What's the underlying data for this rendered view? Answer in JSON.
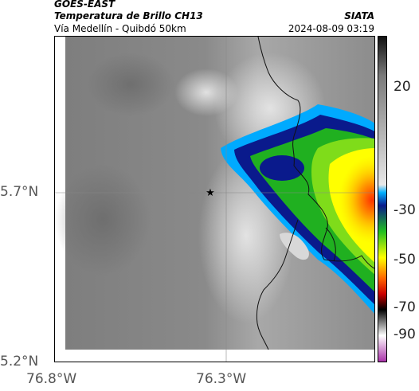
{
  "header": {
    "satellite": "GOES-EAST",
    "product": "Temperatura de Brillo CH13",
    "region": "Vía Medellín - Quibdó 50km",
    "source": "SIATA",
    "datetime": "2024-08-09 03:19"
  },
  "map": {
    "lat_labels": [
      "5.7°N",
      "5.2°N"
    ],
    "lon_labels": [
      "76.8°W",
      "76.3°W"
    ],
    "marker_icon": "star-icon"
  },
  "colorbar": {
    "labels": [
      "20",
      "-30",
      "-50",
      "-70",
      "-90"
    ],
    "stops": [
      {
        "value": 35,
        "color": "#111111"
      },
      {
        "value": 20,
        "color": "#7a7a7a"
      },
      {
        "value": -22,
        "color": "#e8e8e8"
      },
      {
        "value": -25,
        "color": "#00b0ff"
      },
      {
        "value": -30,
        "color": "#0a1a8c"
      },
      {
        "value": -40,
        "color": "#20c020"
      },
      {
        "value": -50,
        "color": "#ffff00"
      },
      {
        "value": -58,
        "color": "#ff6600"
      },
      {
        "value": -64,
        "color": "#cc0000"
      },
      {
        "value": -70,
        "color": "#000000"
      },
      {
        "value": -80,
        "color": "#ffffff"
      },
      {
        "value": -90,
        "color": "#aa33aa"
      }
    ]
  }
}
